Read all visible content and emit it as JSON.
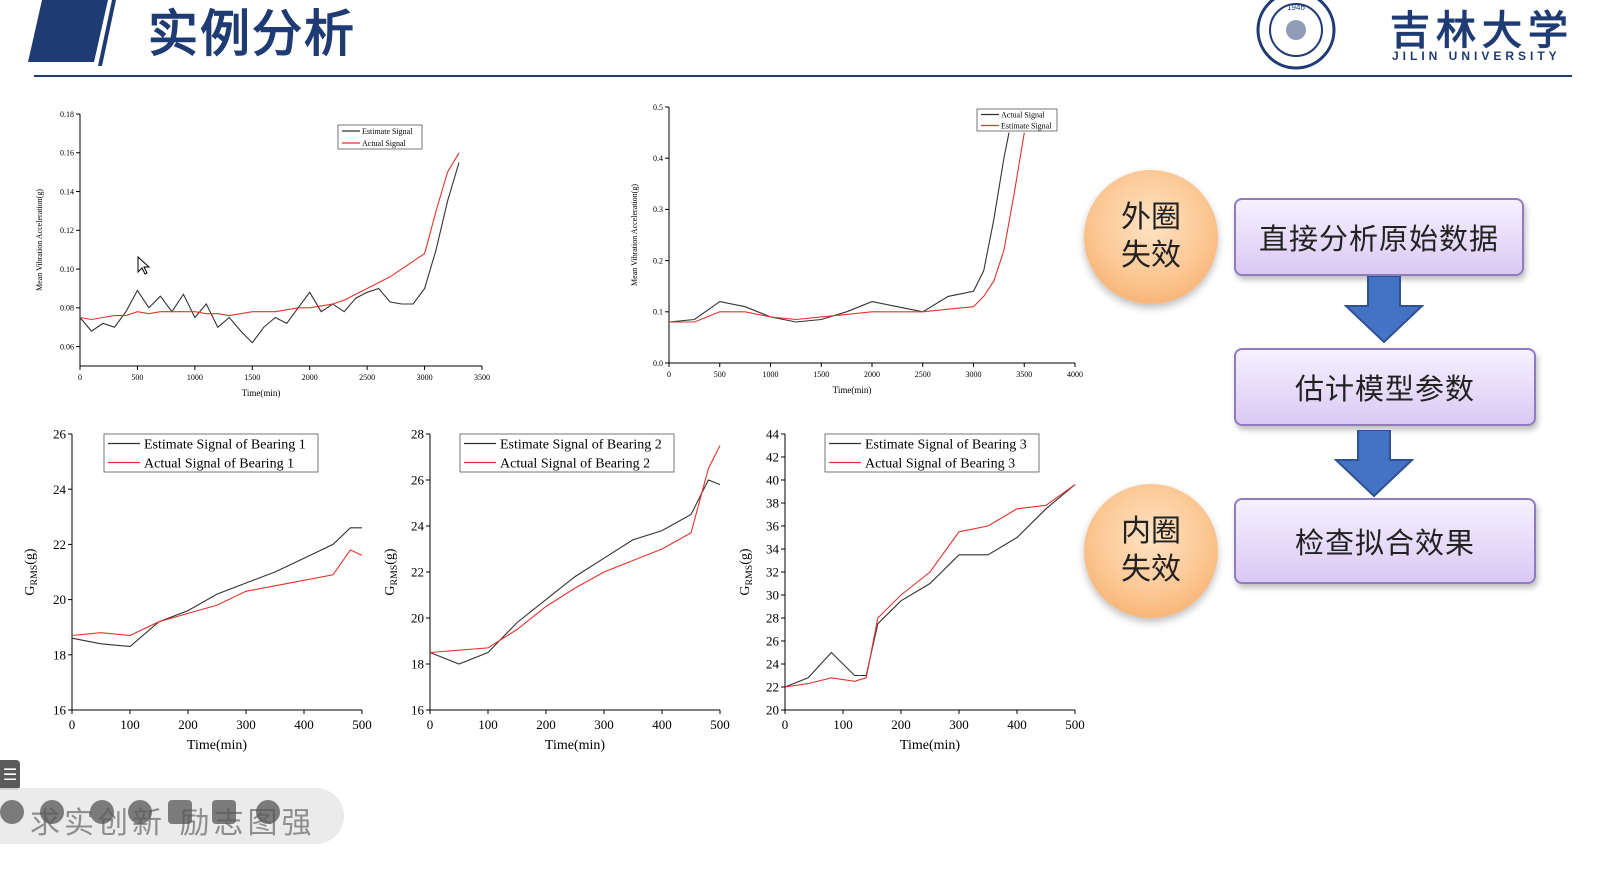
{
  "header": {
    "title": "实例分析",
    "university_cn": "吉林大学",
    "university_en": "JILIN UNIVERSITY",
    "accent_color": "#1f3b73"
  },
  "colors": {
    "estimate": "#333333",
    "actual": "#e0332f"
  },
  "chart_data": [
    {
      "type": "line",
      "xlabel": "Time(min)",
      "ylabel": "Mean Vibration Acceleration(g)",
      "xlim": [
        0,
        3500
      ],
      "ylim": [
        0.05,
        0.18
      ],
      "xticks": [
        0,
        500,
        1000,
        1500,
        2000,
        2500,
        3000,
        3500
      ],
      "yticks": [
        0.06,
        0.08,
        0.1,
        0.12,
        0.14,
        0.16,
        0.18
      ],
      "ytick_labels": [
        "0.06",
        "0.08",
        "0.10",
        "0.12",
        "0.14",
        "0.16",
        "0.18"
      ],
      "legend": "top-right",
      "series": [
        {
          "name": "Estimate Signal",
          "color": "#333333",
          "x": [
            0,
            100,
            200,
            300,
            400,
            500,
            600,
            700,
            800,
            900,
            1000,
            1100,
            1200,
            1300,
            1400,
            1500,
            1600,
            1700,
            1800,
            1900,
            2000,
            2100,
            2200,
            2300,
            2400,
            2500,
            2600,
            2700,
            2800,
            2900,
            3000,
            3100,
            3200,
            3300
          ],
          "y": [
            0.075,
            0.068,
            0.072,
            0.07,
            0.078,
            0.089,
            0.08,
            0.086,
            0.078,
            0.087,
            0.075,
            0.082,
            0.07,
            0.075,
            0.068,
            0.062,
            0.07,
            0.075,
            0.072,
            0.08,
            0.088,
            0.078,
            0.082,
            0.078,
            0.085,
            0.088,
            0.09,
            0.083,
            0.082,
            0.082,
            0.09,
            0.11,
            0.135,
            0.155
          ]
        },
        {
          "name": "Actual Signal",
          "color": "#e0332f",
          "x": [
            0,
            100,
            200,
            300,
            400,
            500,
            600,
            700,
            800,
            900,
            1000,
            1100,
            1200,
            1300,
            1400,
            1500,
            1600,
            1700,
            1800,
            1900,
            2000,
            2100,
            2200,
            2300,
            2400,
            2500,
            2600,
            2700,
            2800,
            2900,
            3000,
            3100,
            3200,
            3300
          ],
          "y": [
            0.075,
            0.074,
            0.075,
            0.076,
            0.076,
            0.078,
            0.077,
            0.078,
            0.078,
            0.078,
            0.078,
            0.077,
            0.077,
            0.076,
            0.077,
            0.078,
            0.078,
            0.078,
            0.079,
            0.08,
            0.08,
            0.081,
            0.082,
            0.084,
            0.087,
            0.09,
            0.093,
            0.096,
            0.1,
            0.104,
            0.108,
            0.13,
            0.15,
            0.16
          ]
        }
      ]
    },
    {
      "type": "line",
      "xlabel": "Time(min)",
      "ylabel": "Mean Vibration Acceleration(g)",
      "xlim": [
        0,
        4000
      ],
      "ylim": [
        0.0,
        0.5
      ],
      "xticks": [
        0,
        500,
        1000,
        1500,
        2000,
        2500,
        3000,
        3500,
        4000
      ],
      "yticks": [
        0.0,
        0.1,
        0.2,
        0.3,
        0.4,
        0.5
      ],
      "ytick_labels": [
        "0.0",
        "0.1",
        "0.2",
        "0.3",
        "0.4",
        "0.5"
      ],
      "legend": "top-right",
      "series": [
        {
          "name": "Actual Signal",
          "color": "#333333",
          "x": [
            0,
            250,
            500,
            750,
            1000,
            1250,
            1500,
            1750,
            2000,
            2250,
            2500,
            2750,
            3000,
            3100,
            3200,
            3300,
            3350
          ],
          "y": [
            0.08,
            0.085,
            0.12,
            0.11,
            0.09,
            0.08,
            0.085,
            0.1,
            0.12,
            0.11,
            0.1,
            0.13,
            0.14,
            0.18,
            0.28,
            0.4,
            0.45
          ]
        },
        {
          "name": "Estimate Signal",
          "color": "#e0332f",
          "x": [
            0,
            250,
            500,
            750,
            1000,
            1250,
            1500,
            1750,
            2000,
            2250,
            2500,
            2750,
            3000,
            3100,
            3200,
            3300,
            3400,
            3500
          ],
          "y": [
            0.08,
            0.08,
            0.1,
            0.1,
            0.09,
            0.085,
            0.09,
            0.095,
            0.1,
            0.1,
            0.1,
            0.105,
            0.11,
            0.13,
            0.16,
            0.22,
            0.33,
            0.45
          ]
        }
      ]
    },
    {
      "type": "line",
      "xlabel": "Time(min)",
      "ylabel": "G",
      "ylabel_sub": "RMS",
      "ylabel_unit": "(g)",
      "xlim": [
        0,
        500
      ],
      "ylim": [
        16,
        26
      ],
      "xticks": [
        0,
        100,
        200,
        300,
        400,
        500
      ],
      "yticks": [
        16,
        18,
        20,
        22,
        24,
        26
      ],
      "ytick_labels": [
        "16",
        "18",
        "20",
        "22",
        "24",
        "26"
      ],
      "legend": "top-left",
      "series": [
        {
          "name": "Estimate Signal of Bearing 1",
          "color": "#333333",
          "x": [
            0,
            50,
            100,
            150,
            200,
            250,
            300,
            350,
            400,
            450,
            480,
            500
          ],
          "y": [
            18.6,
            18.4,
            18.3,
            19.2,
            19.6,
            20.2,
            20.6,
            21.0,
            21.5,
            22.0,
            22.6,
            22.6
          ]
        },
        {
          "name": "Actual Signal of Bearing 1",
          "color": "#e0332f",
          "x": [
            0,
            50,
            100,
            150,
            200,
            250,
            300,
            350,
            400,
            450,
            480,
            500
          ],
          "y": [
            18.7,
            18.8,
            18.7,
            19.2,
            19.5,
            19.8,
            20.3,
            20.5,
            20.7,
            20.9,
            21.8,
            21.6
          ]
        }
      ]
    },
    {
      "type": "line",
      "xlabel": "Time(min)",
      "ylabel": "G",
      "ylabel_sub": "RMS",
      "ylabel_unit": "(g)",
      "xlim": [
        0,
        500
      ],
      "ylim": [
        16,
        28
      ],
      "xticks": [
        0,
        100,
        200,
        300,
        400,
        500
      ],
      "yticks": [
        16,
        18,
        20,
        22,
        24,
        26,
        28
      ],
      "ytick_labels": [
        "16",
        "18",
        "20",
        "22",
        "24",
        "26",
        "28"
      ],
      "legend": "top-left",
      "series": [
        {
          "name": "Estimate Signal of Bearing 2",
          "color": "#333333",
          "x": [
            0,
            50,
            100,
            150,
            200,
            250,
            300,
            350,
            400,
            450,
            480,
            500
          ],
          "y": [
            18.5,
            18.0,
            18.5,
            19.8,
            20.8,
            21.8,
            22.6,
            23.4,
            23.8,
            24.5,
            26.0,
            25.8
          ]
        },
        {
          "name": "Actual Signal of Bearing 2",
          "color": "#e0332f",
          "x": [
            0,
            50,
            100,
            150,
            200,
            250,
            300,
            350,
            400,
            450,
            480,
            500
          ],
          "y": [
            18.5,
            18.6,
            18.7,
            19.5,
            20.5,
            21.3,
            22.0,
            22.5,
            23.0,
            23.7,
            26.5,
            27.5
          ]
        }
      ]
    },
    {
      "type": "line",
      "xlabel": "Time(min)",
      "ylabel": "G",
      "ylabel_sub": "RMS",
      "ylabel_unit": "(g)",
      "xlim": [
        0,
        500
      ],
      "ylim": [
        20,
        44
      ],
      "xticks": [
        0,
        100,
        200,
        300,
        400,
        500
      ],
      "yticks": [
        20,
        22,
        24,
        26,
        28,
        30,
        32,
        34,
        36,
        38,
        40,
        42,
        44
      ],
      "ytick_labels": [
        "20",
        "22",
        "24",
        "26",
        "28",
        "30",
        "32",
        "34",
        "36",
        "38",
        "40",
        "42",
        "44"
      ],
      "legend": "top-left",
      "series": [
        {
          "name": "Estimate Signal of Bearing 3",
          "color": "#333333",
          "x": [
            0,
            40,
            80,
            120,
            140,
            160,
            200,
            250,
            300,
            350,
            400,
            450,
            500
          ],
          "y": [
            22.0,
            22.8,
            25.0,
            23.0,
            23.0,
            27.5,
            29.5,
            31.0,
            33.5,
            33.5,
            35.0,
            37.5,
            39.6
          ]
        },
        {
          "name": "Actual Signal of Bearing 3",
          "color": "#e0332f",
          "x": [
            0,
            40,
            80,
            120,
            140,
            160,
            200,
            250,
            300,
            350,
            400,
            450,
            500
          ],
          "y": [
            22.0,
            22.3,
            22.8,
            22.5,
            22.8,
            28.0,
            30.0,
            32.0,
            35.5,
            36.0,
            37.5,
            37.8,
            39.6
          ]
        }
      ]
    }
  ],
  "failure_labels": {
    "outer": "外圈失效",
    "inner": "内圈失效"
  },
  "flow": {
    "steps": [
      "直接分析原始数据",
      "估计模型参数",
      "检查拟合效果"
    ]
  },
  "watermark": "求实创新 励志图强"
}
